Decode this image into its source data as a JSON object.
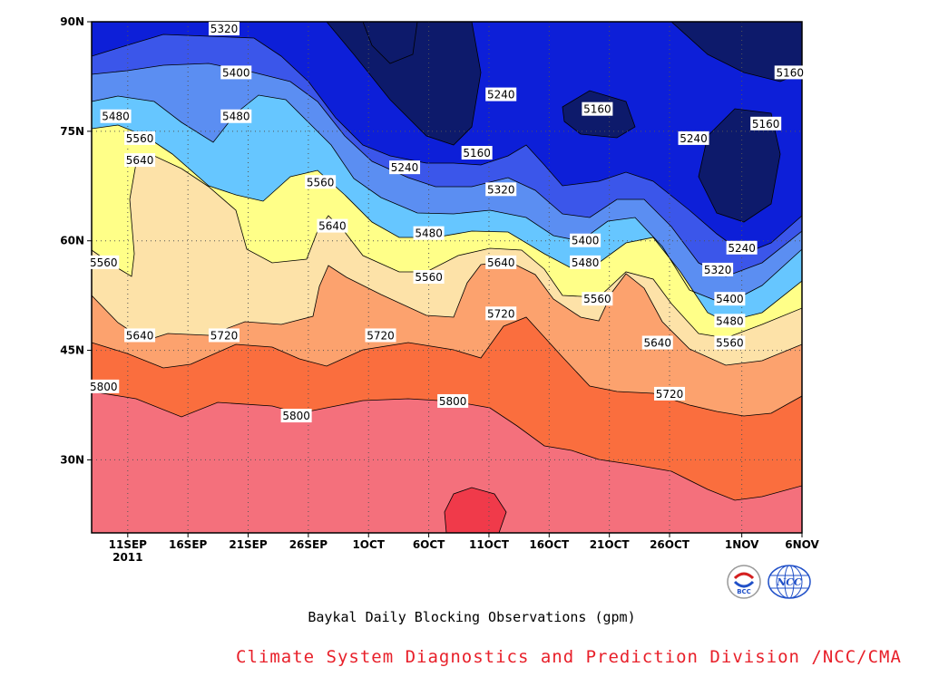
{
  "chart_data": {
    "type": "heatmap",
    "title": "Baykal Daily Blocking Observations (gpm)",
    "credit": "Climate System Diagnostics and Prediction Division /NCC/CMA",
    "x_ticks": [
      "11SEP",
      "16SEP",
      "21SEP",
      "26SEP",
      "1OCT",
      "6OCT",
      "11OCT",
      "16OCT",
      "21OCT",
      "26OCT",
      "1NOV",
      "6NOV"
    ],
    "x_year": "2011",
    "y_ticks": [
      "90N",
      "75N",
      "60N",
      "45N",
      "30N"
    ],
    "xlim": [
      "2011-09-08",
      "2011-11-06"
    ],
    "ylim": [
      20,
      90
    ],
    "grid": true,
    "contour_levels": [
      5160,
      5240,
      5320,
      5400,
      5480,
      5560,
      5640,
      5720,
      5800,
      5880
    ],
    "level_colors": {
      "below_5160": "#0d1a6b",
      "5160": "#0d1fd8",
      "5240": "#2840e8",
      "5320": "#4f6fee",
      "5400": "#64c2ff",
      "5480": "#ffff88",
      "5560": "#fde2a8",
      "5640": "#fca26e",
      "5720": "#fa6e3e",
      "5800": "#f4707c",
      "5880": "#f03a4a"
    },
    "contour_labels": [
      {
        "text": "5320",
        "date": "2011-09-19",
        "lat": 89
      },
      {
        "text": "5400",
        "date": "2011-09-20",
        "lat": 83
      },
      {
        "text": "5160",
        "date": "2011-11-05",
        "lat": 83
      },
      {
        "text": "5240",
        "date": "2011-10-12",
        "lat": 80
      },
      {
        "text": "5160",
        "date": "2011-10-20",
        "lat": 78
      },
      {
        "text": "5480",
        "date": "2011-09-10",
        "lat": 77
      },
      {
        "text": "5480",
        "date": "2011-09-20",
        "lat": 77
      },
      {
        "text": "5160",
        "date": "2011-11-03",
        "lat": 76
      },
      {
        "text": "5560",
        "date": "2011-09-12",
        "lat": 74
      },
      {
        "text": "5240",
        "date": "2011-10-28",
        "lat": 74
      },
      {
        "text": "5160",
        "date": "2011-10-10",
        "lat": 72
      },
      {
        "text": "5640",
        "date": "2011-09-12",
        "lat": 71
      },
      {
        "text": "5240",
        "date": "2011-10-04",
        "lat": 70
      },
      {
        "text": "5560",
        "date": "2011-09-27",
        "lat": 68
      },
      {
        "text": "5320",
        "date": "2011-10-12",
        "lat": 67
      },
      {
        "text": "5640",
        "date": "2011-09-28",
        "lat": 62
      },
      {
        "text": "5480",
        "date": "2011-10-06",
        "lat": 61
      },
      {
        "text": "5400",
        "date": "2011-10-19",
        "lat": 60
      },
      {
        "text": "5240",
        "date": "2011-11-01",
        "lat": 59
      },
      {
        "text": "5560",
        "date": "2011-09-09",
        "lat": 57
      },
      {
        "text": "5480",
        "date": "2011-10-19",
        "lat": 57
      },
      {
        "text": "5640",
        "date": "2011-10-12",
        "lat": 57
      },
      {
        "text": "5320",
        "date": "2011-10-30",
        "lat": 56
      },
      {
        "text": "5560",
        "date": "2011-10-06",
        "lat": 55
      },
      {
        "text": "5560",
        "date": "2011-10-20",
        "lat": 52
      },
      {
        "text": "5400",
        "date": "2011-10-31",
        "lat": 52
      },
      {
        "text": "5720",
        "date": "2011-10-12",
        "lat": 50
      },
      {
        "text": "5480",
        "date": "2011-10-31",
        "lat": 49
      },
      {
        "text": "5640",
        "date": "2011-09-12",
        "lat": 47
      },
      {
        "text": "5720",
        "date": "2011-09-19",
        "lat": 47
      },
      {
        "text": "5720",
        "date": "2011-10-02",
        "lat": 47
      },
      {
        "text": "5560",
        "date": "2011-10-31",
        "lat": 46
      },
      {
        "text": "5640",
        "date": "2011-10-25",
        "lat": 46
      },
      {
        "text": "5800",
        "date": "2011-09-09",
        "lat": 40
      },
      {
        "text": "5720",
        "date": "2011-10-26",
        "lat": 39
      },
      {
        "text": "5800",
        "date": "2011-10-08",
        "lat": 38
      },
      {
        "text": "5800",
        "date": "2011-09-25",
        "lat": 36
      }
    ]
  },
  "logos": {
    "bcc_text": "BCC",
    "ncc_text": "NCC"
  }
}
